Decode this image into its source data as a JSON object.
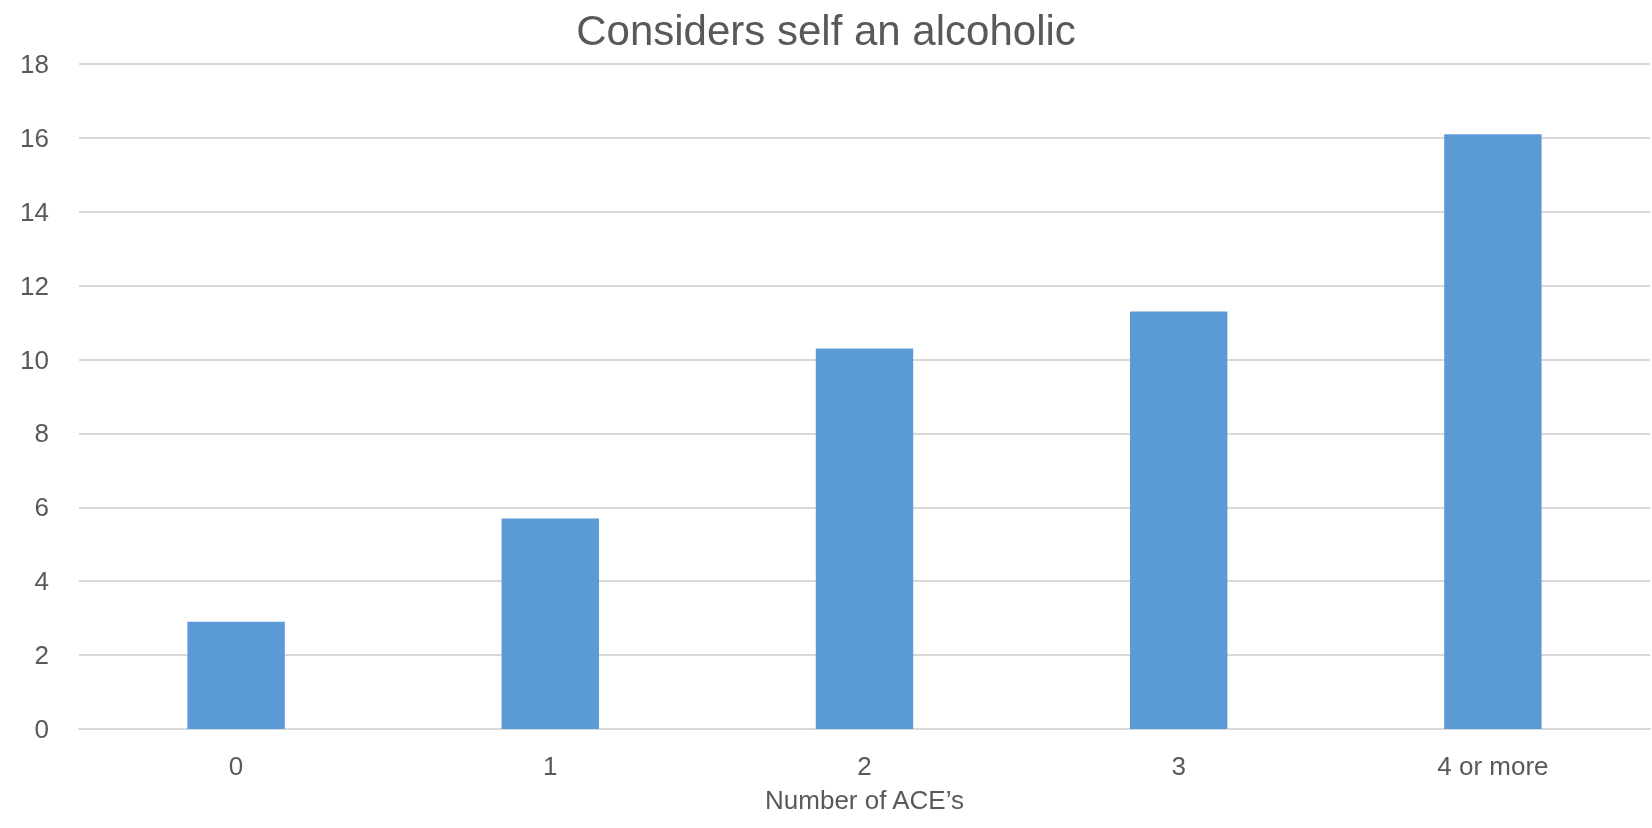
{
  "chart_data": {
    "type": "bar",
    "title": "Considers self an alcoholic",
    "xlabel": "Number of ACE’s",
    "categories": [
      "0",
      "1",
      "2",
      "3",
      "4 or more"
    ],
    "values": [
      2.9,
      5.7,
      10.3,
      11.3,
      16.1
    ],
    "color": "#5b9bd5",
    "ylim": [
      0,
      18
    ],
    "yticks": [
      0,
      2,
      4,
      6,
      8,
      10,
      12,
      14,
      16,
      18
    ],
    "grid": "y"
  }
}
